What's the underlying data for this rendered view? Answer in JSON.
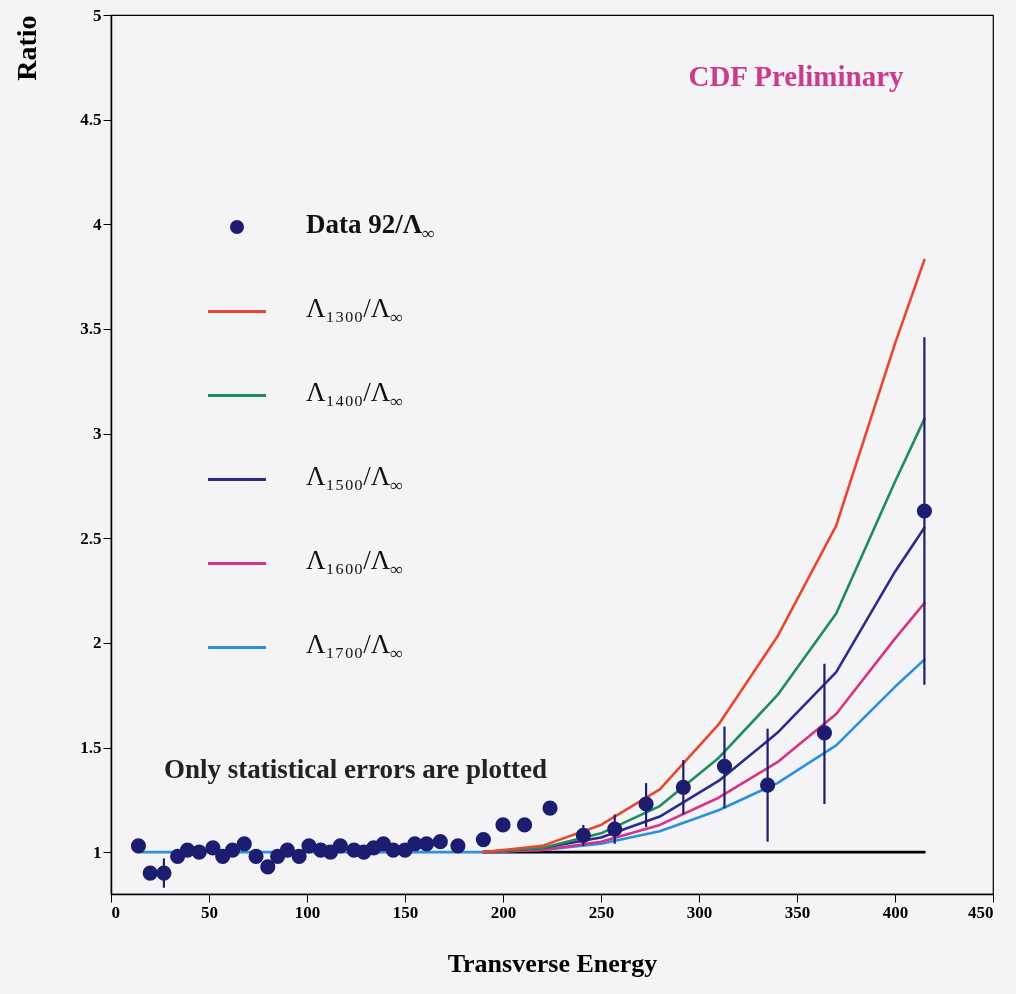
{
  "chart_data": {
    "type": "line",
    "xlabel": "Transverse Energy",
    "ylabel": "Ratio",
    "annotations": [
      "CDF Preliminary",
      "Only statistical errors are plotted"
    ],
    "xlim": [
      0,
      450
    ],
    "ylim": [
      0.8,
      5
    ],
    "xticks": [
      0,
      50,
      100,
      150,
      200,
      250,
      300,
      350,
      400,
      450
    ],
    "yticks": [
      1,
      1.5,
      2,
      2.5,
      3,
      3.5,
      4,
      4.5,
      5
    ],
    "legend": "top left",
    "line_style": "solid",
    "series": [
      {
        "color": "#000000",
        "x": [
          190,
          415
        ],
        "values": [
          1,
          1
        ]
      },
      {
        "name": "Λ₁₇₀₀/Λ$_{∞}$",
        "color": "#2a90e0",
        "x": [
          14,
          190,
          220,
          250,
          280,
          310,
          340,
          370,
          400,
          415
        ],
        "values": [
          1,
          1,
          1.01,
          1.04,
          1.1,
          1.2,
          1.33,
          1.51,
          1.79,
          1.92
        ]
      },
      {
        "name": "Λ₁₆₀₀/Λ$_{∞}$",
        "color": "#d63384",
        "x": [
          190,
          220,
          250,
          280,
          310,
          340,
          370,
          400,
          415
        ],
        "values": [
          1,
          1.01,
          1.05,
          1.13,
          1.26,
          1.43,
          1.66,
          2.02,
          2.19
        ]
      },
      {
        "name": "Λ₁₅₀₀/Λ$_{∞}$",
        "color": "#2b2b8c",
        "x": [
          190,
          220,
          250,
          280,
          310,
          340,
          370,
          400,
          415
        ],
        "values": [
          1,
          1.02,
          1.07,
          1.17,
          1.34,
          1.57,
          1.86,
          2.34,
          2.55
        ]
      },
      {
        "name": "Λ₁₄₀₀/Λ$_{∞}$",
        "color": "#1e8c5e",
        "x": [
          190,
          220,
          250,
          280,
          310,
          340,
          370,
          400,
          415
        ],
        "values": [
          1,
          1.02,
          1.09,
          1.22,
          1.45,
          1.75,
          2.14,
          2.77,
          3.07
        ]
      },
      {
        "name": "Λ₁₃₀₀/Λ$_{∞}$",
        "color": "#e8472e",
        "x": [
          190,
          220,
          250,
          280,
          310,
          340,
          370,
          400,
          415
        ],
        "values": [
          1,
          1.03,
          1.13,
          1.3,
          1.61,
          2.03,
          2.56,
          3.43,
          3.83
        ]
      },
      {
        "type": "scatter",
        "marker": "circle",
        "name": "Data 92/Λ$_{∞}$",
        "color": "#1c1c70",
        "x": [
          14,
          20,
          27,
          34,
          39,
          45,
          52,
          57,
          62,
          68,
          74,
          80,
          85,
          90,
          96,
          101,
          107,
          112,
          117,
          124,
          129,
          134,
          139,
          144,
          150,
          155,
          161,
          168,
          177,
          190,
          200,
          211,
          224,
          241,
          257,
          273,
          292,
          313,
          335,
          364,
          415
        ],
        "values": [
          1.03,
          0.9,
          0.9,
          0.98,
          1.01,
          1,
          1.02,
          0.98,
          1.01,
          1.04,
          0.98,
          0.93,
          0.98,
          1.01,
          0.98,
          1.03,
          1.01,
          1,
          1.03,
          1.01,
          1,
          1.02,
          1.04,
          1.01,
          1.01,
          1.04,
          1.04,
          1.05,
          1.03,
          1.06,
          1.13,
          1.13,
          1.21,
          1.08,
          1.11,
          1.23,
          1.31,
          1.41,
          1.32,
          1.57,
          2.63
        ],
        "errors": [
          null,
          null,
          [
            0.83,
            0.97
          ],
          null,
          null,
          null,
          null,
          null,
          null,
          null,
          null,
          null,
          null,
          null,
          null,
          null,
          null,
          null,
          null,
          null,
          null,
          null,
          null,
          null,
          null,
          null,
          null,
          null,
          null,
          null,
          null,
          null,
          null,
          [
            1.03,
            1.13
          ],
          [
            1.04,
            1.18
          ],
          [
            1.12,
            1.33
          ],
          [
            1.18,
            1.44
          ],
          [
            1.21,
            1.6
          ],
          [
            1.05,
            1.59
          ],
          [
            1.23,
            1.9
          ],
          [
            1.8,
            3.46
          ]
        ]
      }
    ]
  }
}
